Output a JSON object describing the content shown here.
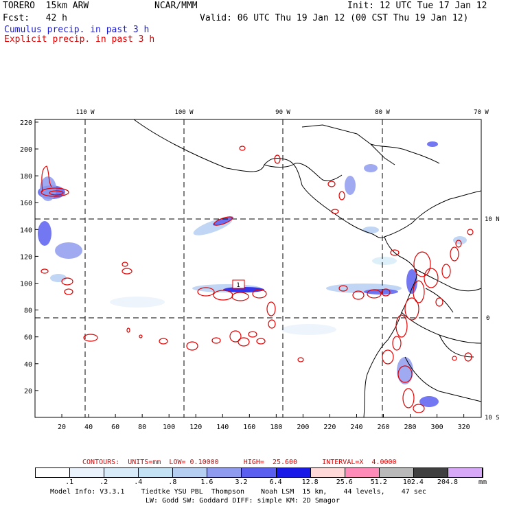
{
  "header": {
    "model": "TORERO  15km ARW",
    "org": "NCAR/MMM",
    "init": "Init: 12 UTC Tue 17 Jan 12",
    "fcst": "Fcst:   42 h",
    "valid": "Valid: 06 UTC Thu 19 Jan 12 (00 CST Thu 19 Jan 12)",
    "field1": "Cumulus precip. in past 3 h",
    "field2": "Explicit precip. in past 3 h"
  },
  "map": {
    "lon_labels": [
      "110 W",
      "100 W",
      "90 W",
      "80 W",
      "70 W"
    ],
    "lat_labels": [
      "10 N",
      "0",
      "10 S"
    ],
    "x_ticks": [
      "20",
      "40",
      "60",
      "80",
      "100",
      "120",
      "140",
      "160",
      "180",
      "200",
      "220",
      "240",
      "260",
      "280",
      "300",
      "320"
    ],
    "y_ticks": [
      "20",
      "40",
      "60",
      "80",
      "100",
      "120",
      "140",
      "160",
      "180",
      "200",
      "220"
    ],
    "box_label": "1"
  },
  "contours": {
    "title": "CONTOURS:  UNITS=mm  LOW= 0.10000      HIGH=  25.600      INTERVAL=X  4.0000"
  },
  "colorbar": {
    "labels": [
      ".1",
      ".2",
      ".4",
      ".8",
      "1.6",
      "3.2",
      "6.4",
      "12.8",
      "25.6",
      "51.2",
      "102.4",
      "204.8"
    ],
    "unit": "mm",
    "colors": [
      "#ffffff",
      "#eaf2fb",
      "#d7ecf8",
      "#c3e3f5",
      "#b5cff2",
      "#8f9bee",
      "#5b5ff0",
      "#1a1ae8",
      "#ffd8d8",
      "#ff8cb8",
      "#b9b9b9",
      "#404040",
      "#d7a8f8"
    ]
  },
  "footer": {
    "line1": "Model Info: V3.3.1    Tiedtke YSU PBL  Thompson    Noah LSM  15 km,    44 levels,    47 sec",
    "line2": "LW: Godd SW: Goddard DIFF: simple KM: 2D Smagor"
  }
}
